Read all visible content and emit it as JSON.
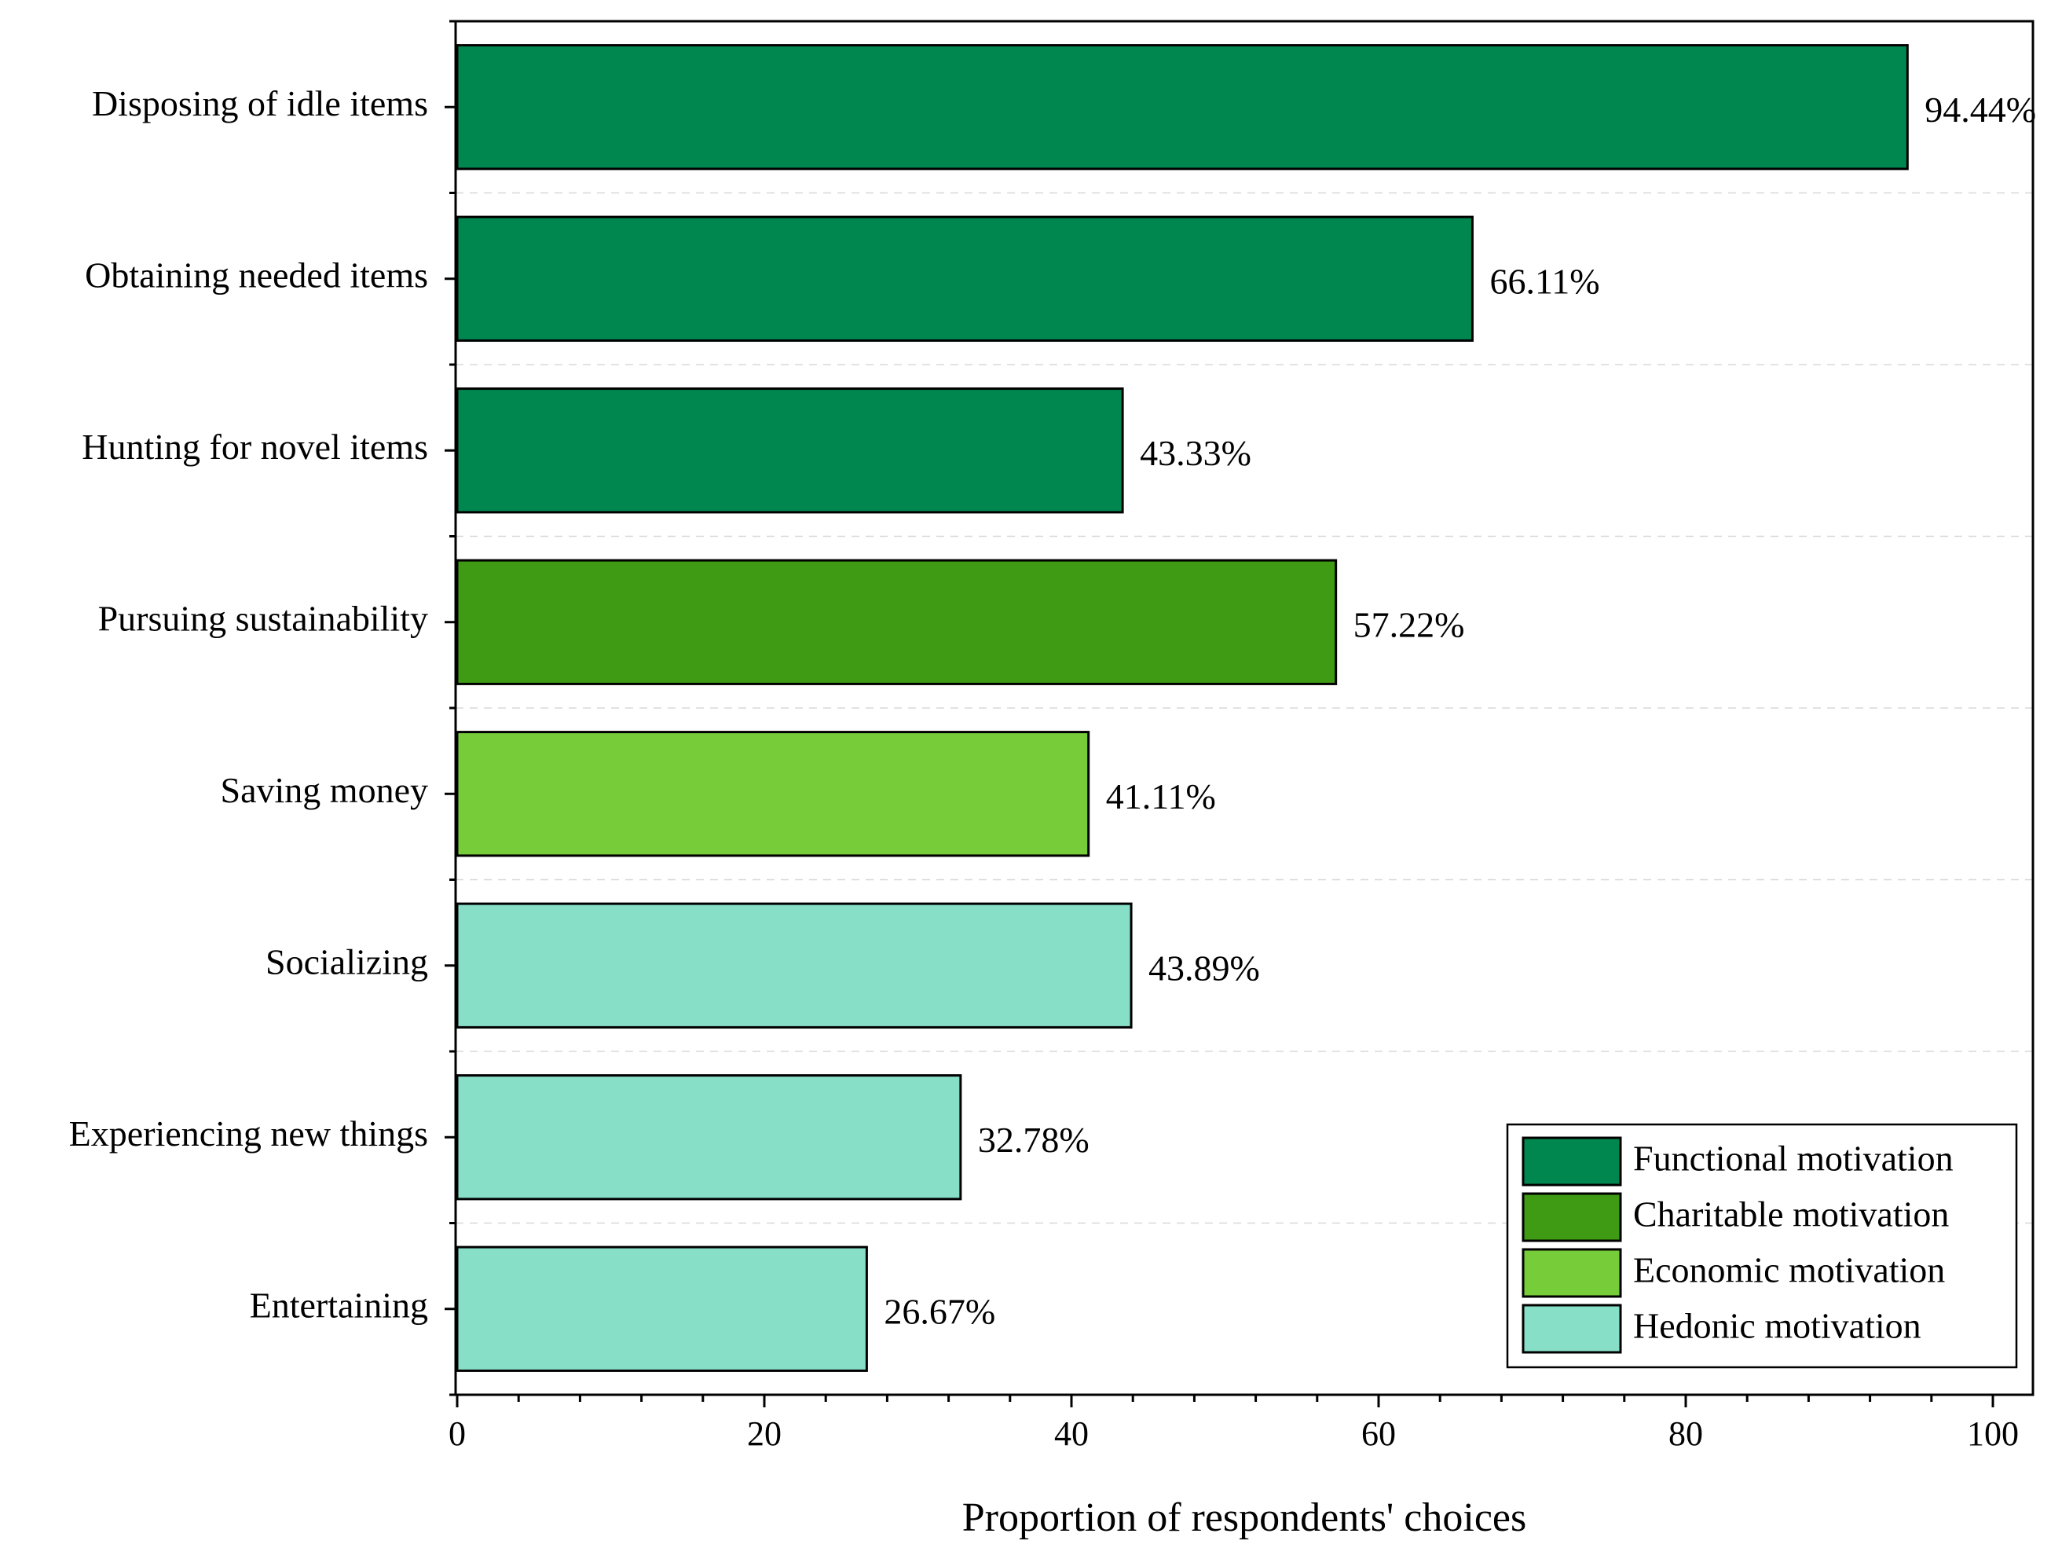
{
  "chart_data": {
    "type": "bar",
    "orientation": "horizontal",
    "title": "",
    "xlabel": "Proportion of respondents' choices",
    "ylabel": "",
    "xlim": [
      0,
      100
    ],
    "xticks": [
      0,
      20,
      40,
      60,
      80,
      100
    ],
    "categories": [
      "Disposing of idle items",
      "Obtaining needed items",
      "Hunting for novel items",
      "Pursuing sustainability",
      "Saving money",
      "Socializing",
      "Experiencing new things",
      "Entertaining"
    ],
    "values": [
      94.44,
      66.11,
      43.33,
      57.22,
      41.11,
      43.89,
      32.78,
      26.67
    ],
    "value_labels": [
      "94.44%",
      "66.11%",
      "43.33%",
      "57.22%",
      "41.11%",
      "43.89%",
      "32.78%",
      "26.67%"
    ],
    "groups": [
      "Functional motivation",
      "Functional motivation",
      "Functional motivation",
      "Charitable motivation",
      "Economic motivation",
      "Hedonic motivation",
      "Hedonic motivation",
      "Hedonic motivation"
    ],
    "legend": {
      "position": "bottom-right",
      "entries": [
        {
          "label": "Functional motivation",
          "color": "#00874f"
        },
        {
          "label": "Charitable motivation",
          "color": "#3f9a14"
        },
        {
          "label": "Economic motivation",
          "color": "#77cc3a"
        },
        {
          "label": "Hedonic motivation",
          "color": "#88dfc7"
        }
      ]
    },
    "grid": true
  }
}
